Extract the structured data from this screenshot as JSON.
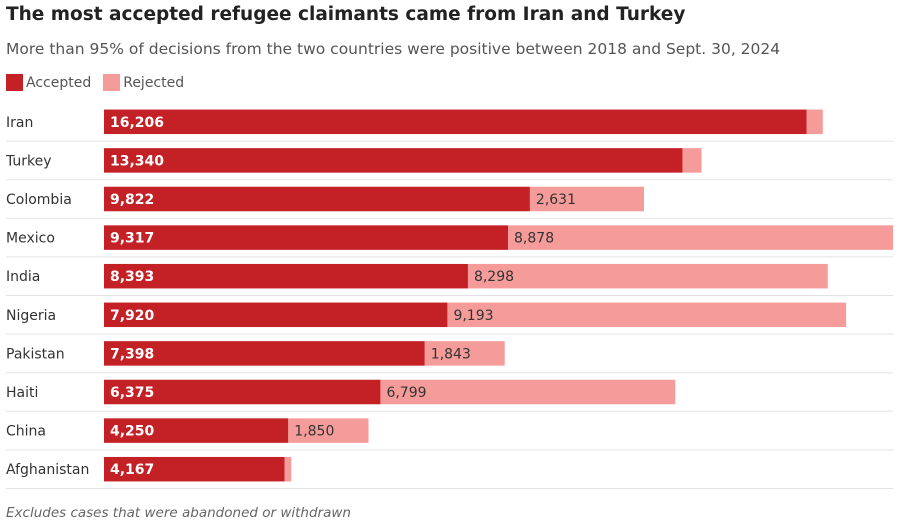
{
  "chart_data": {
    "type": "bar",
    "orientation": "horizontal",
    "stacked": true,
    "title": "The most accepted refugee claimants came from Iran and Turkey",
    "subtitle": "More than 95% of decisions from the two countries were positive between 2018 and Sept. 30, 2024",
    "note": "Excludes cases that were abandoned or withdrawn",
    "legend_position": "top-left",
    "grid": false,
    "categories": [
      "Iran",
      "Turkey",
      "Colombia",
      "Mexico",
      "India",
      "Nigeria",
      "Pakistan",
      "Haiti",
      "China",
      "Afghanistan"
    ],
    "series": [
      {
        "name": "Accepted",
        "color": "#c42127",
        "values": [
          16206,
          13340,
          9822,
          9317,
          8393,
          7920,
          7398,
          6375,
          4250,
          4167
        ],
        "labels": [
          "16,206",
          "13,340",
          "9,822",
          "9,317",
          "8,393",
          "7,920",
          "7,398",
          "6,375",
          "4,250",
          "4,167"
        ]
      },
      {
        "name": "Rejected",
        "color": "#f59c9a",
        "values": [
          370,
          440,
          2631,
          8878,
          8298,
          9193,
          1843,
          6799,
          1850,
          150
        ],
        "labels": [
          "",
          "",
          "2,631",
          "8,878",
          "8,298",
          "9,193",
          "1,843",
          "6,799",
          "1,850",
          ""
        ]
      }
    ],
    "xlim": [
      0,
      18195
    ]
  }
}
